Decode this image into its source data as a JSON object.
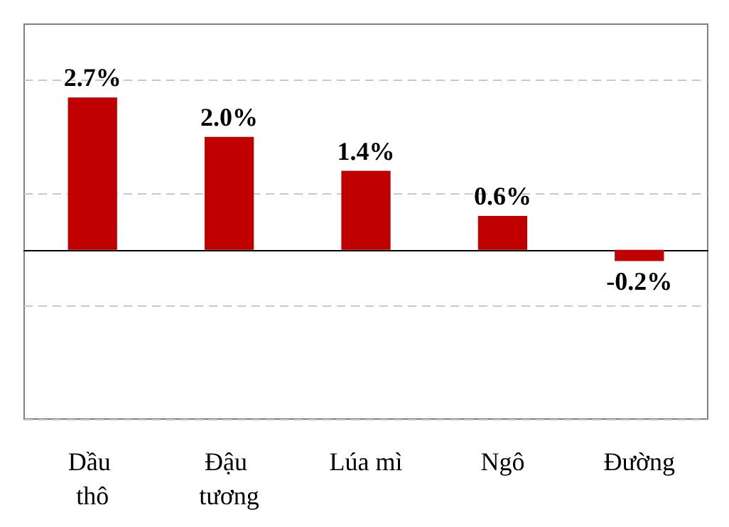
{
  "chart_data": {
    "type": "bar",
    "categories": [
      "Dầu thô",
      "Đậu tương",
      "Lúa mì",
      "Ngô",
      "Đường"
    ],
    "values": [
      2.7,
      2.0,
      1.4,
      0.6,
      -0.2
    ],
    "value_labels": [
      "2.7%",
      "2.0%",
      "1.4%",
      "0.6%",
      "-0.2%"
    ],
    "color": "#c00000",
    "ylim": [
      -3,
      4
    ],
    "yticks": [
      {
        "value": -3,
        "label": null
      },
      {
        "value": -1,
        "label": null
      },
      {
        "value": 1,
        "label": null
      },
      {
        "value": 3,
        "label": null
      }
    ],
    "grid": "y",
    "tick_labels": "x"
  }
}
